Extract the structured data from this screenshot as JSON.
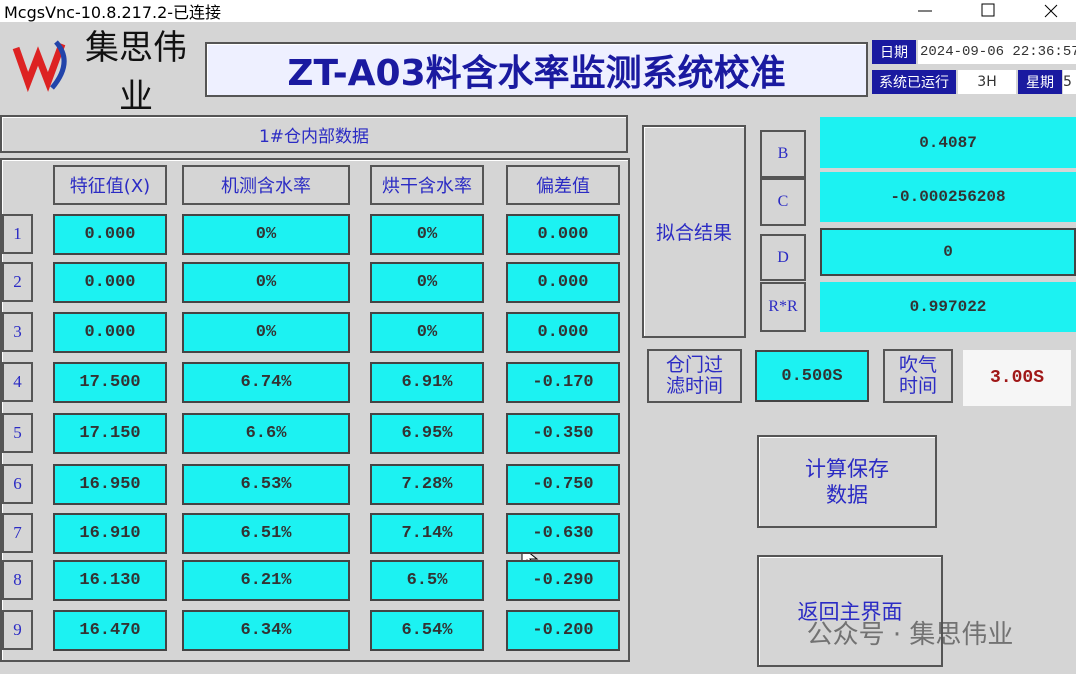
{
  "window": {
    "title": "McgsVnc-10.8.217.2-已连接"
  },
  "header": {
    "logo": "集思伟业",
    "title": "ZT-A03料含水率监测系统校准",
    "date_label": "日期",
    "date": "2024-09-06 22:36:57",
    "runtime_label": "系统已运行",
    "runtime": "3H",
    "weekday_label": "星期",
    "weekday": "5"
  },
  "table": {
    "title": "1#仓内部数据",
    "columns": [
      "特征值(X)",
      "机测含水率",
      "烘干含水率",
      "偏差值"
    ],
    "rows": [
      [
        "1",
        "0.000",
        "0%",
        "0%",
        "0.000"
      ],
      [
        "2",
        "0.000",
        "0%",
        "0%",
        "0.000"
      ],
      [
        "3",
        "0.000",
        "0%",
        "0%",
        "0.000"
      ],
      [
        "4",
        "17.500",
        "6.74%",
        "6.91%",
        "-0.170"
      ],
      [
        "5",
        "17.150",
        "6.6%",
        "6.95%",
        "-0.350"
      ],
      [
        "6",
        "16.950",
        "6.53%",
        "7.28%",
        "-0.750"
      ],
      [
        "7",
        "16.910",
        "6.51%",
        "7.14%",
        "-0.630"
      ],
      [
        "8",
        "16.130",
        "6.21%",
        "6.5%",
        "-0.290"
      ],
      [
        "9",
        "16.470",
        "6.34%",
        "6.54%",
        "-0.200"
      ]
    ]
  },
  "fit": {
    "label": "拟合结果",
    "params": [
      {
        "name": "B",
        "value": "0.4087"
      },
      {
        "name": "C",
        "value": "-0.000256208"
      },
      {
        "name": "D",
        "value": "0"
      },
      {
        "name": "R*R",
        "value": "0.997022"
      }
    ]
  },
  "settings": {
    "filter_label": "仓门过滤时间",
    "filter_value": "0.500S",
    "blow_label": "吹气时间",
    "blow_value": "3.00S"
  },
  "buttons": {
    "calculate": "计算保存数据",
    "back": "返回主界面"
  },
  "watermark": "公众号 · 集思伟业"
}
